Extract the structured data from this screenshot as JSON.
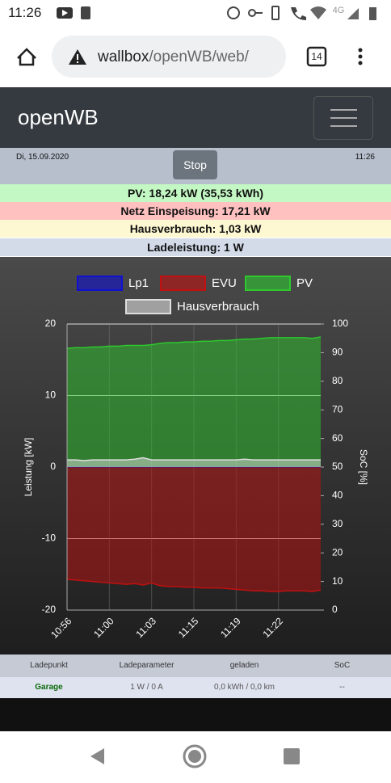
{
  "status_bar": {
    "time": "11:26",
    "network": "4G"
  },
  "browser": {
    "url_host": "wallbox",
    "url_path": "/openWB/web/",
    "tab_count": "14"
  },
  "header": {
    "title": "openWB"
  },
  "info": {
    "date": "Di, 15.09.2020",
    "button": "Stop",
    "time": "11:26"
  },
  "summary": {
    "pv": "PV: 18,24 kW (35,53 kWh)",
    "grid": "Netz Einspeisung: 17,21 kW",
    "house": "Hausverbrauch: 1,03 kW",
    "charge": "Ladeleistung: 1 W"
  },
  "chart_data": {
    "type": "area",
    "y_label": "Leistung [kW]",
    "y2_label": "SoC [%]",
    "categories": [
      "10:56",
      null,
      null,
      null,
      null,
      "11:00",
      null,
      null,
      null,
      null,
      "11:03",
      null,
      null,
      null,
      null,
      "11:15",
      null,
      null,
      null,
      null,
      "11:19",
      null,
      null,
      null,
      null,
      "11:22",
      null,
      null,
      null,
      null,
      null
    ],
    "series": [
      {
        "name": "Lp1",
        "color": "#1010d0",
        "values": [
          0,
          0,
          0,
          0,
          0,
          0,
          0,
          0,
          0,
          0,
          0,
          0,
          0,
          0,
          0,
          0,
          0,
          0,
          0,
          0,
          0,
          0,
          0,
          0,
          0,
          0,
          0,
          0,
          0,
          0,
          0
        ]
      },
      {
        "name": "EVU",
        "color": "#c01010",
        "values": [
          -15.7,
          -15.8,
          -15.9,
          -16.0,
          -16.1,
          -16.2,
          -16.3,
          -16.4,
          -16.3,
          -16.5,
          -16.2,
          -16.6,
          -16.7,
          -16.7,
          -16.8,
          -16.8,
          -16.9,
          -16.9,
          -16.9,
          -17.0,
          -17.1,
          -17.2,
          -17.3,
          -17.3,
          -17.4,
          -17.4,
          -17.3,
          -17.3,
          -17.3,
          -17.4,
          -17.2
        ]
      },
      {
        "name": "PV",
        "color": "#2ec82e",
        "values": [
          16.6,
          16.7,
          16.7,
          16.8,
          16.8,
          16.9,
          16.9,
          17.0,
          17.0,
          17.0,
          17.1,
          17.3,
          17.4,
          17.4,
          17.5,
          17.5,
          17.6,
          17.6,
          17.7,
          17.7,
          17.8,
          17.9,
          17.9,
          18.0,
          18.1,
          18.1,
          18.1,
          18.1,
          18.1,
          18.0,
          18.2
        ]
      },
      {
        "name": "Hausverbrauch",
        "color": "#dddddd",
        "values": [
          1.0,
          1.0,
          0.9,
          1.0,
          1.0,
          1.0,
          1.0,
          1.0,
          1.1,
          1.3,
          1.0,
          1.0,
          1.0,
          1.0,
          1.0,
          1.0,
          1.0,
          1.0,
          1.0,
          1.0,
          1.0,
          1.1,
          1.0,
          1.0,
          1.0,
          1.0,
          1.0,
          1.0,
          1.0,
          1.0,
          1.0
        ]
      }
    ],
    "ylim": [
      -20,
      20
    ],
    "yticks": [
      -20,
      -10,
      0,
      10,
      20
    ],
    "y2lim": [
      0,
      100
    ],
    "y2ticks": [
      0,
      10,
      20,
      30,
      40,
      50,
      60,
      70,
      80,
      90,
      100
    ],
    "grid": true
  },
  "table": {
    "headers": [
      "Ladepunkt",
      "Ladeparameter",
      "geladen",
      "SoC"
    ],
    "rows": [
      [
        "Garage",
        "1 W / 0 A",
        "0,0 kWh / 0,0 km",
        "--"
      ]
    ]
  }
}
